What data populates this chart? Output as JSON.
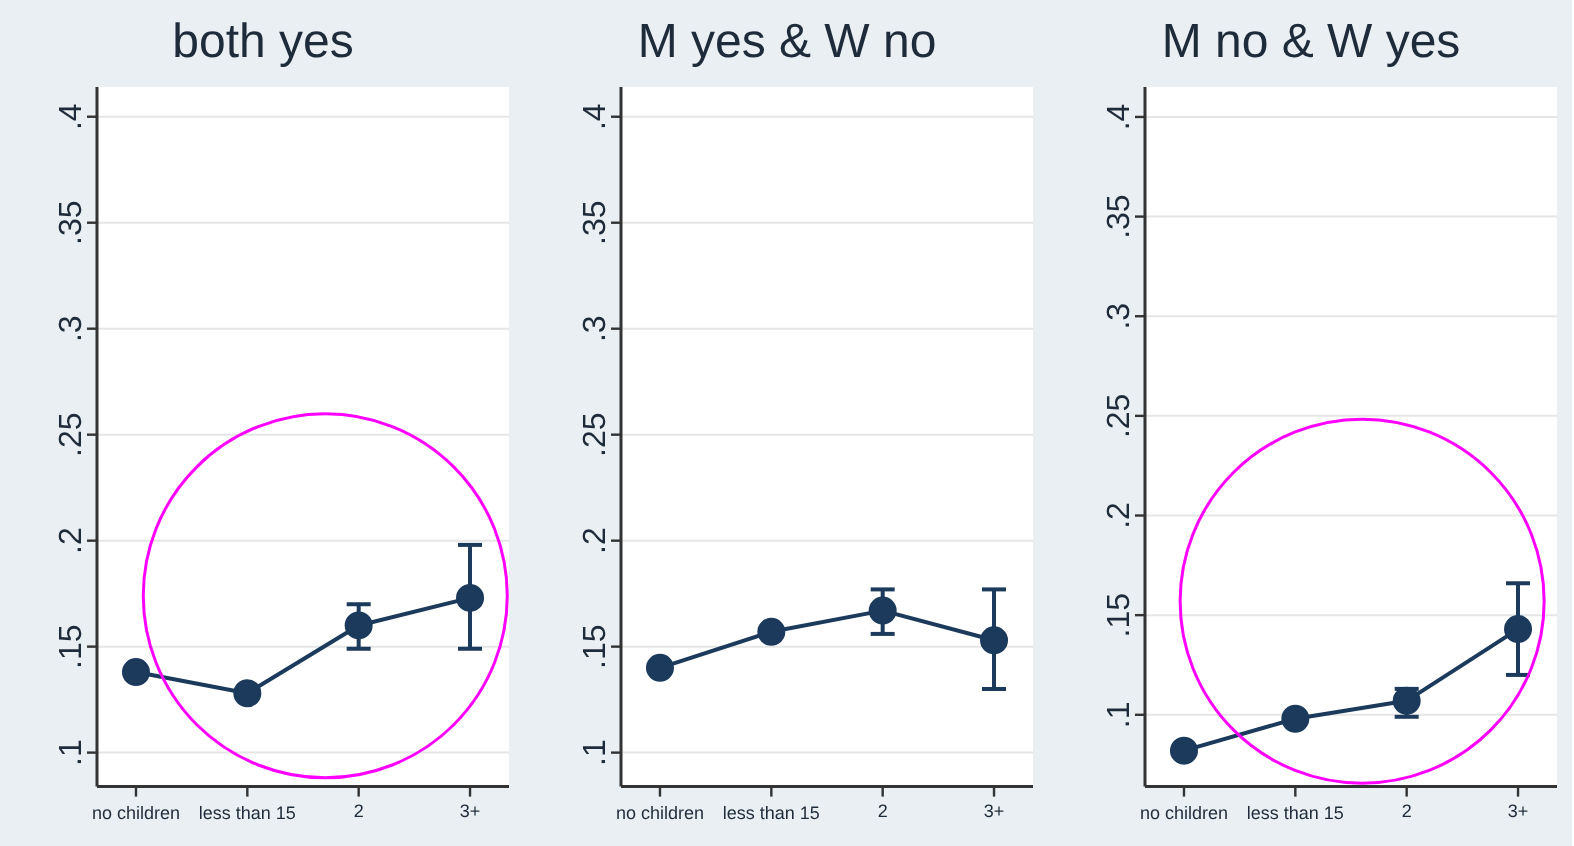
{
  "chart_data": [
    {
      "type": "line",
      "title": "both yes",
      "categories": [
        "no children",
        "less than 15",
        "2",
        "3+"
      ],
      "marker": "circle",
      "grid": "y",
      "series": [
        {
          "color": "#1b3a5c",
          "values": [
            0.138,
            0.128,
            0.16,
            0.173
          ],
          "errors": [
            null,
            null,
            [
              0.149,
              0.17
            ],
            [
              0.149,
              0.198
            ]
          ]
        }
      ],
      "ylim": [
        0.084,
        0.414
      ],
      "yticks": [
        {
          "value": 0.1,
          "label": ".1"
        },
        {
          "value": 0.15,
          "label": ".15"
        },
        {
          "value": 0.2,
          "label": ".2"
        },
        {
          "value": 0.25,
          "label": ".25"
        },
        {
          "value": 0.3,
          "label": ".3"
        },
        {
          "value": 0.35,
          "label": ".35"
        },
        {
          "value": 0.4,
          "label": ".4"
        }
      ]
    },
    {
      "type": "line",
      "title": "M yes & W no",
      "categories": [
        "no children",
        "less than 15",
        "2",
        "3+"
      ],
      "marker": "circle",
      "grid": "y",
      "series": [
        {
          "color": "#1b3a5c",
          "values": [
            0.14,
            0.157,
            0.167,
            0.153
          ],
          "errors": [
            null,
            null,
            [
              0.156,
              0.177
            ],
            [
              0.13,
              0.177
            ]
          ]
        }
      ],
      "ylim": [
        0.084,
        0.414
      ],
      "yticks": [
        {
          "value": 0.1,
          "label": ".1"
        },
        {
          "value": 0.15,
          "label": ".15"
        },
        {
          "value": 0.2,
          "label": ".2"
        },
        {
          "value": 0.25,
          "label": ".25"
        },
        {
          "value": 0.3,
          "label": ".3"
        },
        {
          "value": 0.35,
          "label": ".35"
        },
        {
          "value": 0.4,
          "label": ".4"
        }
      ]
    },
    {
      "type": "line",
      "title": "M no & W yes",
      "categories": [
        "no children",
        "less than 15",
        "2",
        "3+"
      ],
      "marker": "circle",
      "grid": "y",
      "series": [
        {
          "color": "#1b3a5c",
          "values": [
            0.082,
            0.098,
            0.107,
            0.143
          ],
          "errors": [
            null,
            null,
            [
              0.099,
              0.113
            ],
            [
              0.12,
              0.166
            ]
          ]
        }
      ],
      "ylim": [
        0.064,
        0.415
      ],
      "yticks": [
        {
          "value": 0.1,
          "label": ".1"
        },
        {
          "value": 0.15,
          "label": ".15"
        },
        {
          "value": 0.2,
          "label": ".2"
        },
        {
          "value": 0.25,
          "label": ".25"
        },
        {
          "value": 0.3,
          "label": ".3"
        },
        {
          "value": 0.35,
          "label": ".35"
        },
        {
          "value": 0.4,
          "label": ".4"
        }
      ]
    }
  ]
}
